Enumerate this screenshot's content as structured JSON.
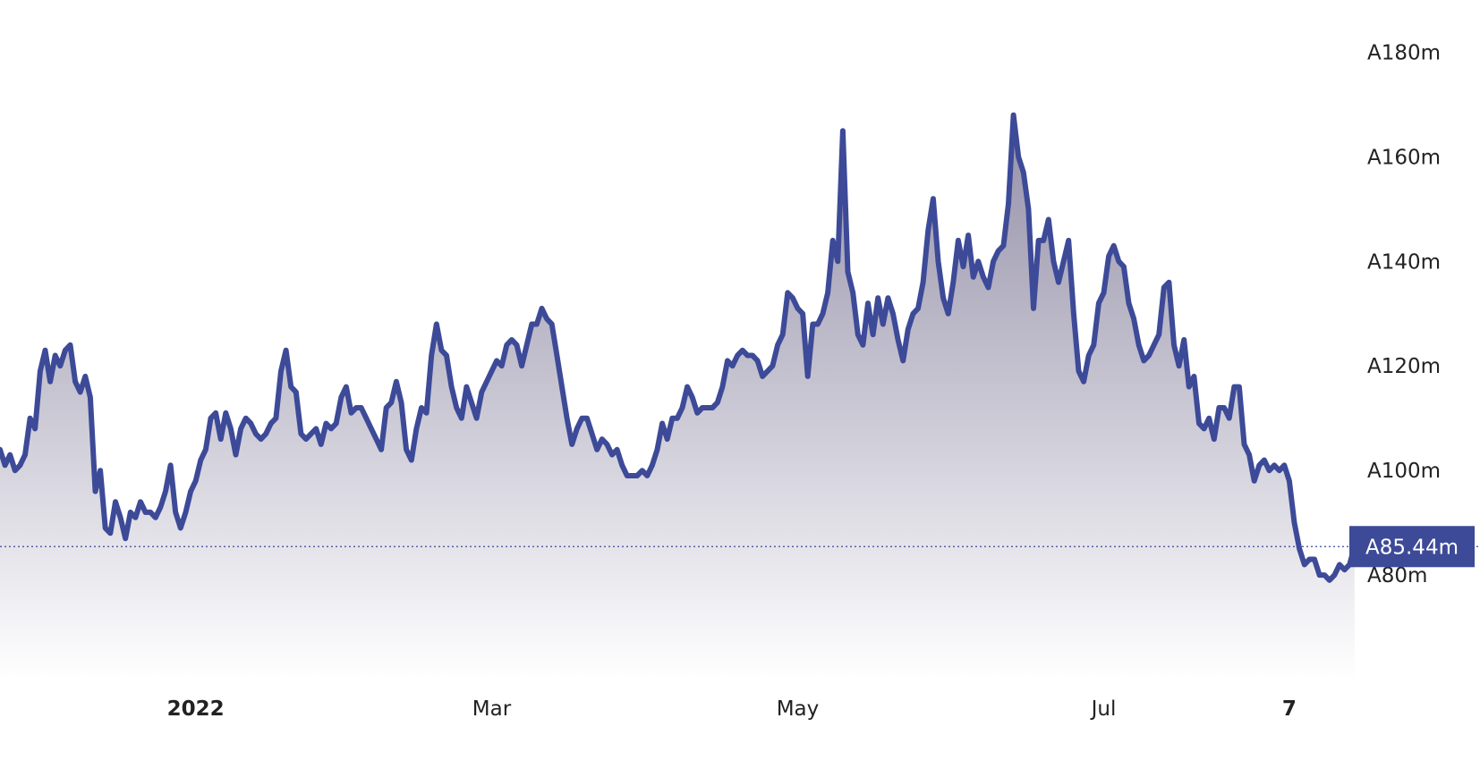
{
  "colors": {
    "line": "#3d4a98",
    "area_top": "#8f8aa4",
    "area_bottom": "#ffffff",
    "badge": "#3d4a98",
    "badge_text": "#ffffff",
    "text": "#222222",
    "background": "#ffffff"
  },
  "chart_data": {
    "type": "area",
    "title": "",
    "xlabel": "",
    "ylabel": "",
    "grid": false,
    "legend": "none",
    "y_tick_labels": [
      "A180m",
      "A160m",
      "A140m",
      "A120m",
      "A100m",
      "A80m"
    ],
    "y_tick_values": [
      180,
      160,
      140,
      120,
      100,
      80
    ],
    "y_unit": "millions",
    "ylim": [
      60,
      190
    ],
    "x_tick_labels": [
      {
        "label": "2022",
        "date": "2022-01-01",
        "bold": true
      },
      {
        "label": "Mar",
        "date": "2022-03-01",
        "bold": false
      },
      {
        "label": "May",
        "date": "2022-05-01",
        "bold": false
      },
      {
        "label": "Jul",
        "date": "2022-07-01",
        "bold": false
      },
      {
        "label": "7",
        "date": "2022-08-07",
        "bold": true
      }
    ],
    "xlim": [
      "2021-11-23",
      "2022-09-14"
    ],
    "last_value": 85.44,
    "last_value_label": "A85.44m",
    "series": [
      {
        "x": [
          "2021-11-23",
          "2021-11-24",
          "2021-11-25",
          "2021-11-26",
          "2021-11-27",
          "2021-11-28",
          "2021-11-29",
          "2021-11-30",
          "2021-12-01",
          "2021-12-02",
          "2021-12-03",
          "2021-12-04",
          "2021-12-05",
          "2021-12-06",
          "2021-12-07",
          "2021-12-08",
          "2021-12-09",
          "2021-12-10",
          "2021-12-11",
          "2021-12-12",
          "2021-12-13",
          "2021-12-14",
          "2021-12-15",
          "2021-12-16",
          "2021-12-17",
          "2021-12-18",
          "2021-12-19",
          "2021-12-20",
          "2021-12-21",
          "2021-12-22",
          "2021-12-23",
          "2021-12-24",
          "2021-12-25",
          "2021-12-26",
          "2021-12-27",
          "2021-12-28",
          "2021-12-29",
          "2021-12-30",
          "2021-12-31",
          "2022-01-01",
          "2022-01-02",
          "2022-01-03",
          "2022-01-04",
          "2022-01-05",
          "2022-01-06",
          "2022-01-07",
          "2022-01-08",
          "2022-01-09",
          "2022-01-10",
          "2022-01-11",
          "2022-01-12",
          "2022-01-13",
          "2022-01-14",
          "2022-01-15",
          "2022-01-16",
          "2022-01-17",
          "2022-01-18",
          "2022-01-19",
          "2022-01-20",
          "2022-01-21",
          "2022-01-22",
          "2022-01-23",
          "2022-01-24",
          "2022-01-25",
          "2022-01-26",
          "2022-01-27",
          "2022-01-28",
          "2022-01-29",
          "2022-01-30",
          "2022-01-31",
          "2022-02-01",
          "2022-02-02",
          "2022-02-03",
          "2022-02-04",
          "2022-02-05",
          "2022-02-06",
          "2022-02-07",
          "2022-02-08",
          "2022-02-09",
          "2022-02-10",
          "2022-02-11",
          "2022-02-12",
          "2022-02-13",
          "2022-02-14",
          "2022-02-15",
          "2022-02-16",
          "2022-02-17",
          "2022-02-18",
          "2022-02-19",
          "2022-02-20",
          "2022-02-21",
          "2022-02-22",
          "2022-02-23",
          "2022-02-24",
          "2022-02-25",
          "2022-02-26",
          "2022-02-27",
          "2022-02-28",
          "2022-03-01",
          "2022-03-02",
          "2022-03-03",
          "2022-03-04",
          "2022-03-05",
          "2022-03-06",
          "2022-03-07",
          "2022-03-08",
          "2022-03-09",
          "2022-03-10",
          "2022-03-11",
          "2022-03-12",
          "2022-03-13",
          "2022-03-14",
          "2022-03-15",
          "2022-03-16",
          "2022-03-17",
          "2022-03-18",
          "2022-03-19",
          "2022-03-20",
          "2022-03-21",
          "2022-03-22",
          "2022-03-23",
          "2022-03-24",
          "2022-03-25",
          "2022-03-26",
          "2022-03-27",
          "2022-03-28",
          "2022-03-29",
          "2022-03-30",
          "2022-03-31",
          "2022-04-01",
          "2022-04-02",
          "2022-04-03",
          "2022-04-04",
          "2022-04-05",
          "2022-04-06",
          "2022-04-07",
          "2022-04-08",
          "2022-04-09",
          "2022-04-10",
          "2022-04-11",
          "2022-04-12",
          "2022-04-13",
          "2022-04-14",
          "2022-04-15",
          "2022-04-16",
          "2022-04-17",
          "2022-04-18",
          "2022-04-19",
          "2022-04-20",
          "2022-04-21",
          "2022-04-22",
          "2022-04-23",
          "2022-04-24",
          "2022-04-25",
          "2022-04-26",
          "2022-04-27",
          "2022-04-28",
          "2022-04-29",
          "2022-04-30",
          "2022-05-01",
          "2022-05-02",
          "2022-05-03",
          "2022-05-04",
          "2022-05-05",
          "2022-05-06",
          "2022-05-07",
          "2022-05-08",
          "2022-05-09",
          "2022-05-10",
          "2022-05-11",
          "2022-05-12",
          "2022-05-13",
          "2022-05-14",
          "2022-05-15",
          "2022-05-16",
          "2022-05-17",
          "2022-05-18",
          "2022-05-19",
          "2022-05-20",
          "2022-05-21",
          "2022-05-22",
          "2022-05-23",
          "2022-05-24",
          "2022-05-25",
          "2022-05-26",
          "2022-05-27",
          "2022-05-28",
          "2022-05-29",
          "2022-05-30",
          "2022-05-31",
          "2022-06-01",
          "2022-06-02",
          "2022-06-03",
          "2022-06-04",
          "2022-06-05",
          "2022-06-06",
          "2022-06-07",
          "2022-06-08",
          "2022-06-09",
          "2022-06-10",
          "2022-06-11",
          "2022-06-12",
          "2022-06-13",
          "2022-06-14",
          "2022-06-15",
          "2022-06-16",
          "2022-06-17",
          "2022-06-18",
          "2022-06-19",
          "2022-06-20",
          "2022-06-21",
          "2022-06-22",
          "2022-06-23",
          "2022-06-24",
          "2022-06-25",
          "2022-06-26",
          "2022-06-27",
          "2022-06-28",
          "2022-06-29",
          "2022-06-30",
          "2022-07-01",
          "2022-07-02",
          "2022-07-03",
          "2022-07-04",
          "2022-07-05",
          "2022-07-06",
          "2022-07-07",
          "2022-07-08",
          "2022-07-09",
          "2022-07-10",
          "2022-07-11",
          "2022-07-12",
          "2022-07-13",
          "2022-07-14",
          "2022-07-15",
          "2022-07-16",
          "2022-07-17",
          "2022-07-18",
          "2022-07-19",
          "2022-07-20",
          "2022-07-21",
          "2022-07-22",
          "2022-07-23",
          "2022-07-24",
          "2022-07-25",
          "2022-07-26",
          "2022-07-27",
          "2022-07-28",
          "2022-07-29",
          "2022-07-30",
          "2022-07-31",
          "2022-08-01",
          "2022-08-02",
          "2022-08-03",
          "2022-08-04",
          "2022-08-05",
          "2022-08-06",
          "2022-08-07",
          "2022-08-08",
          "2022-08-09",
          "2022-08-10",
          "2022-08-11",
          "2022-08-12",
          "2022-08-13",
          "2022-08-14",
          "2022-08-15",
          "2022-08-16",
          "2022-08-17",
          "2022-08-18",
          "2022-08-19",
          "2022-08-20"
        ],
        "values": [
          104,
          101,
          103,
          100,
          101,
          103,
          110,
          108,
          119,
          123,
          117,
          122,
          120,
          123,
          124,
          117,
          115,
          118,
          114,
          96,
          100,
          89,
          88,
          94,
          91,
          87,
          92,
          91,
          94,
          92,
          92,
          91,
          93,
          96,
          101,
          92,
          89,
          92,
          96,
          98,
          102,
          104,
          110,
          111,
          106,
          111,
          108,
          103,
          108,
          110,
          109,
          107,
          106,
          107,
          109,
          110,
          119,
          123,
          116,
          115,
          107,
          106,
          107,
          108,
          105,
          109,
          108,
          109,
          114,
          116,
          111,
          112,
          112,
          110,
          108,
          106,
          104,
          112,
          113,
          117,
          113,
          104,
          102,
          108,
          112,
          111,
          122,
          128,
          123,
          122,
          116,
          112,
          110,
          116,
          113,
          110,
          115,
          117,
          119,
          121,
          120,
          124,
          125,
          124,
          120,
          124,
          128,
          128,
          131,
          129,
          128,
          122,
          116,
          110,
          105,
          108,
          110,
          110,
          107,
          104,
          106,
          105,
          103,
          104,
          101,
          99,
          99,
          99,
          100,
          99,
          101,
          104,
          109,
          106,
          110,
          110,
          112,
          116,
          114,
          111,
          112,
          112,
          112,
          113,
          116,
          121,
          120,
          122,
          123,
          122,
          122,
          121,
          118,
          119,
          120,
          124,
          126,
          134,
          133,
          131,
          130,
          118,
          128,
          128,
          130,
          134,
          144,
          140,
          165,
          138,
          134,
          126,
          124,
          132,
          126,
          133,
          128,
          133,
          130,
          125,
          121,
          127,
          130,
          131,
          136,
          146,
          152,
          140,
          133,
          130,
          136,
          144,
          139,
          145,
          137,
          140,
          137,
          135,
          140,
          142,
          143,
          151,
          168,
          160,
          157,
          150,
          131,
          144,
          144,
          148,
          140,
          136,
          140,
          144,
          130,
          119,
          117,
          122,
          124,
          132,
          134,
          141,
          143,
          140,
          139,
          132,
          129,
          124,
          121,
          122,
          124,
          126,
          135,
          136,
          124,
          120,
          125,
          116,
          118,
          109,
          108,
          110,
          106,
          112,
          112,
          110,
          116,
          116,
          105,
          103,
          98,
          101,
          102,
          100,
          101,
          100,
          101,
          98,
          90,
          85,
          82,
          83,
          83,
          80,
          80,
          79,
          80,
          82,
          81,
          82,
          85.44
        ]
      }
    ]
  }
}
